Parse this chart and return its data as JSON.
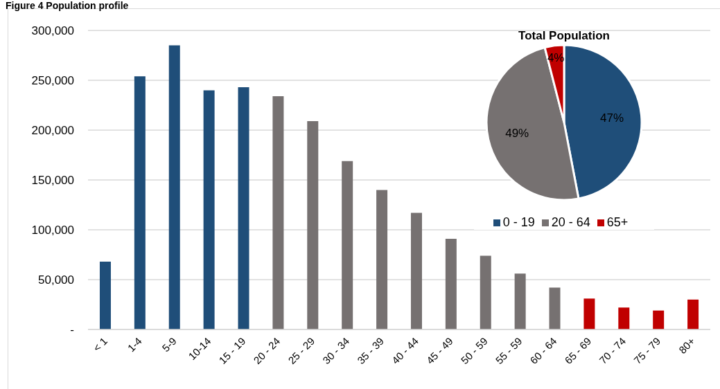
{
  "chart_data": [
    {
      "type": "bar",
      "title": "Figure 4 Population profile",
      "categories": [
        "< 1",
        "1-4",
        "5-9",
        "10-14",
        "15 - 19",
        "20 - 24",
        "25 - 29",
        "30 - 34",
        "35 - 39",
        "40 - 44",
        "45 - 49",
        "50 - 59",
        "55 - 59",
        "60 - 64",
        "65 - 69",
        "70 - 74",
        "75 - 79",
        "80+"
      ],
      "values": [
        68000,
        254000,
        285000,
        240000,
        243000,
        234000,
        209000,
        169000,
        140000,
        117000,
        91000,
        74000,
        56000,
        42000,
        31000,
        22000,
        19000,
        30000
      ],
      "colors": [
        "#1f4e79",
        "#1f4e79",
        "#1f4e79",
        "#1f4e79",
        "#1f4e79",
        "#767171",
        "#767171",
        "#767171",
        "#767171",
        "#767171",
        "#767171",
        "#767171",
        "#767171",
        "#767171",
        "#c00000",
        "#c00000",
        "#c00000",
        "#c00000"
      ],
      "ylim": [
        0,
        300000
      ],
      "yticks": [
        {
          "value": 0,
          "label": "-"
        },
        {
          "value": 50000,
          "label": "50,000"
        },
        {
          "value": 100000,
          "label": "100,000"
        },
        {
          "value": 150000,
          "label": "150,000"
        },
        {
          "value": 200000,
          "label": "200,000"
        },
        {
          "value": 250000,
          "label": "250,000"
        },
        {
          "value": 300000,
          "label": "300,000"
        }
      ],
      "grid": "y"
    },
    {
      "type": "pie",
      "title": "Total Population",
      "categories": [
        "0 - 19",
        "20 - 64",
        "65+"
      ],
      "values": [
        47,
        49,
        4
      ],
      "colors": [
        "#1f4e79",
        "#767171",
        "#c00000"
      ],
      "value_labels": [
        "47%",
        "49%",
        "4%"
      ],
      "legend": "bottom"
    }
  ]
}
